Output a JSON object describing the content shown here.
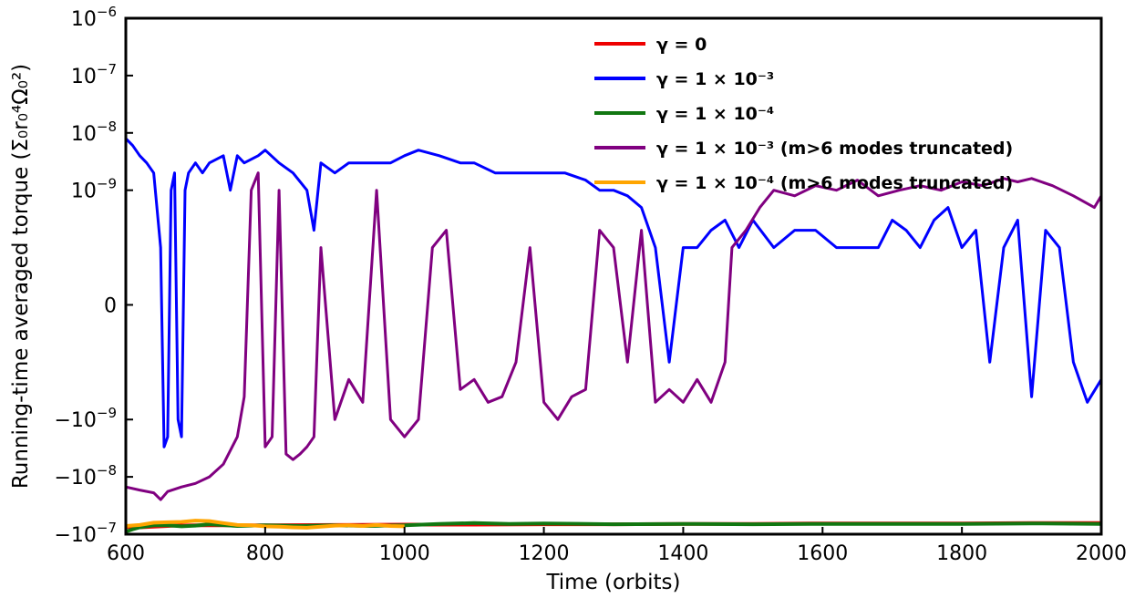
{
  "chart_data": {
    "type": "line",
    "title": "",
    "xlabel": "Time (orbits)",
    "ylabel": "Running-time averaged torque (Σ₀r₀⁴Ω₀²)",
    "xlim": [
      600,
      2000
    ],
    "yscale": "symlog",
    "ylim": [
      -1e-07,
      1e-06
    ],
    "linthresh": 1e-10,
    "x_ticks": [
      600,
      800,
      1000,
      1200,
      1400,
      1600,
      1800,
      2000
    ],
    "x_tick_labels": [
      "600",
      "800",
      "1000",
      "1200",
      "1400",
      "1600",
      "1800",
      "2000"
    ],
    "y_ticks": [
      {
        "value": 1e-06,
        "mantissa": "10",
        "exponent": "−6"
      },
      {
        "value": 1e-07,
        "mantissa": "10",
        "exponent": "−7"
      },
      {
        "value": 1e-08,
        "mantissa": "10",
        "exponent": "−8"
      },
      {
        "value": 1e-09,
        "mantissa": "10",
        "exponent": "−9"
      },
      {
        "value": 0,
        "mantissa": "0",
        "exponent": ""
      },
      {
        "value": -1e-09,
        "mantissa": "−10",
        "exponent": "−9"
      },
      {
        "value": -1e-08,
        "mantissa": "−10",
        "exponent": "−8"
      },
      {
        "value": -1e-07,
        "mantissa": "−10",
        "exponent": "−7"
      }
    ],
    "grid": false,
    "legend_position": "upper-right",
    "series": [
      {
        "name": "γ = 0",
        "color": "#ee0000",
        "x": [
          600,
          610,
          620,
          630,
          640,
          650,
          670,
          700,
          750,
          800,
          900,
          1000,
          1100,
          1200,
          1300,
          1400,
          1500,
          1600,
          1700,
          1800,
          1900,
          2000
        ],
        "y": [
          -7.4e-08,
          -7.5e-08,
          -7.6e-08,
          -7.5e-08,
          -7.4e-08,
          -7.3e-08,
          -7.1e-08,
          -7e-08,
          -7e-08,
          -7e-08,
          -6.9e-08,
          -6.8e-08,
          -6.8e-08,
          -6.7e-08,
          -6.7e-08,
          -6.6e-08,
          -6.6e-08,
          -6.5e-08,
          -6.5e-08,
          -6.5e-08,
          -6.4e-08,
          -6.4e-08
        ]
      },
      {
        "name": "γ = 1 × 10⁻³",
        "color": "#0000ff",
        "x": [
          600,
          610,
          620,
          630,
          640,
          650,
          655,
          660,
          665,
          670,
          675,
          680,
          685,
          690,
          700,
          710,
          720,
          740,
          750,
          760,
          770,
          790,
          800,
          820,
          840,
          860,
          870,
          880,
          900,
          920,
          950,
          980,
          1000,
          1020,
          1050,
          1080,
          1100,
          1130,
          1160,
          1200,
          1230,
          1260,
          1280,
          1300,
          1320,
          1340,
          1360,
          1380,
          1400,
          1420,
          1440,
          1460,
          1480,
          1500,
          1530,
          1560,
          1590,
          1620,
          1650,
          1680,
          1700,
          1720,
          1740,
          1760,
          1780,
          1800,
          1820,
          1840,
          1860,
          1880,
          1900,
          1920,
          1940,
          1960,
          1980,
          2000
        ],
        "y": [
          8e-09,
          6e-09,
          4e-09,
          3e-09,
          2e-09,
          1e-10,
          -3e-09,
          -2e-09,
          1e-09,
          2e-09,
          -1e-09,
          -2e-09,
          1e-09,
          2e-09,
          3e-09,
          2e-09,
          3e-09,
          4e-09,
          1e-09,
          4e-09,
          3e-09,
          4e-09,
          5e-09,
          3e-09,
          2e-09,
          1e-09,
          2e-10,
          3e-09,
          2e-09,
          3e-09,
          3e-09,
          3e-09,
          4e-09,
          5e-09,
          4e-09,
          3e-09,
          3e-09,
          2e-09,
          2e-09,
          2e-09,
          2e-09,
          1.5e-09,
          1e-09,
          1e-09,
          8e-10,
          5e-10,
          1e-10,
          -1e-10,
          1e-10,
          1e-10,
          2e-10,
          3e-10,
          1e-10,
          3e-10,
          1e-10,
          2e-10,
          2e-10,
          1e-10,
          1e-10,
          1e-10,
          3e-10,
          2e-10,
          1e-10,
          3e-10,
          5e-10,
          1e-10,
          2e-10,
          -1e-10,
          1e-10,
          3e-10,
          -4e-10,
          2e-10,
          1e-10,
          -1e-10,
          -5e-10,
          -2e-10
        ]
      },
      {
        "name": "γ = 1 × 10⁻⁴",
        "color": "#117711",
        "x": [
          600,
          605,
          610,
          620,
          640,
          660,
          680,
          700,
          720,
          760,
          800,
          850,
          900,
          950,
          1000,
          1050,
          1100,
          1150,
          1200,
          1300,
          1400,
          1500,
          1600,
          1700,
          1800,
          1900,
          2000
        ],
        "y": [
          -9e-08,
          -8.6e-08,
          -8.2e-08,
          -7.6e-08,
          -7e-08,
          -7e-08,
          -7.3e-08,
          -7.1e-08,
          -6.7e-08,
          -7.2e-08,
          -7e-08,
          -7.2e-08,
          -7e-08,
          -7.2e-08,
          -7e-08,
          -6.6e-08,
          -6.4e-08,
          -6.6e-08,
          -6.5e-08,
          -6.7e-08,
          -6.6e-08,
          -6.7e-08,
          -6.6e-08,
          -6.6e-08,
          -6.6e-08,
          -6.5e-08,
          -6.6e-08
        ]
      },
      {
        "name": "γ = 1 × 10⁻³ (m>6 modes truncated)",
        "color": "#800080",
        "x": [
          600,
          620,
          640,
          650,
          660,
          680,
          700,
          720,
          740,
          760,
          770,
          780,
          790,
          800,
          810,
          820,
          830,
          840,
          850,
          860,
          870,
          880,
          900,
          920,
          940,
          960,
          980,
          1000,
          1020,
          1040,
          1060,
          1080,
          1100,
          1120,
          1140,
          1160,
          1180,
          1200,
          1220,
          1240,
          1260,
          1280,
          1300,
          1320,
          1340,
          1360,
          1380,
          1400,
          1420,
          1440,
          1460,
          1470,
          1490,
          1510,
          1530,
          1560,
          1590,
          1620,
          1650,
          1680,
          1710,
          1740,
          1770,
          1800,
          1830,
          1860,
          1880,
          1900,
          1930,
          1960,
          1990,
          2000
        ],
        "y": [
          -1.5e-08,
          -1.7e-08,
          -1.9e-08,
          -2.5e-08,
          -1.8e-08,
          -1.5e-08,
          -1.3e-08,
          -1e-08,
          -6e-09,
          -2e-09,
          -4e-10,
          1e-09,
          2e-09,
          -3e-09,
          -2e-09,
          1e-09,
          -4e-09,
          -5e-09,
          -4e-09,
          -3e-09,
          -2e-09,
          1e-10,
          -1e-09,
          -2e-10,
          -5e-10,
          1e-09,
          -1e-09,
          -2e-09,
          -1e-09,
          1e-10,
          2e-10,
          -3e-10,
          -2e-10,
          -5e-10,
          -4e-10,
          -1e-10,
          1e-10,
          -5e-10,
          -1e-09,
          -4e-10,
          -3e-10,
          2e-10,
          1e-10,
          -1e-10,
          2e-10,
          -5e-10,
          -3e-10,
          -5e-10,
          -2e-10,
          -5e-10,
          -1e-10,
          1e-10,
          2e-10,
          5e-10,
          1e-09,
          8e-10,
          1.2e-09,
          1e-09,
          1.5e-09,
          8e-10,
          1e-09,
          1.2e-09,
          1e-09,
          1.4e-09,
          1.2e-09,
          1.6e-09,
          1.4e-09,
          1.6e-09,
          1.2e-09,
          8e-10,
          5e-10,
          8e-10
        ]
      },
      {
        "name": "γ = 1 × 10⁻⁴ (m>6 modes truncated)",
        "color": "#ffa500",
        "x": [
          600,
          620,
          640,
          660,
          680,
          700,
          720,
          740,
          760,
          780,
          800,
          820,
          840,
          860,
          880,
          900,
          920,
          940,
          960,
          980,
          1000
        ],
        "y": [
          -7.2e-08,
          -6.9e-08,
          -6.3e-08,
          -6.2e-08,
          -6.1e-08,
          -5.8e-08,
          -5.9e-08,
          -6.4e-08,
          -6.9e-08,
          -7e-08,
          -7.3e-08,
          -7.4e-08,
          -7.6e-08,
          -7.7e-08,
          -7.4e-08,
          -7.1e-08,
          -7e-08,
          -7.2e-08,
          -6.9e-08,
          -7.2e-08,
          -7.3e-08
        ]
      }
    ]
  }
}
